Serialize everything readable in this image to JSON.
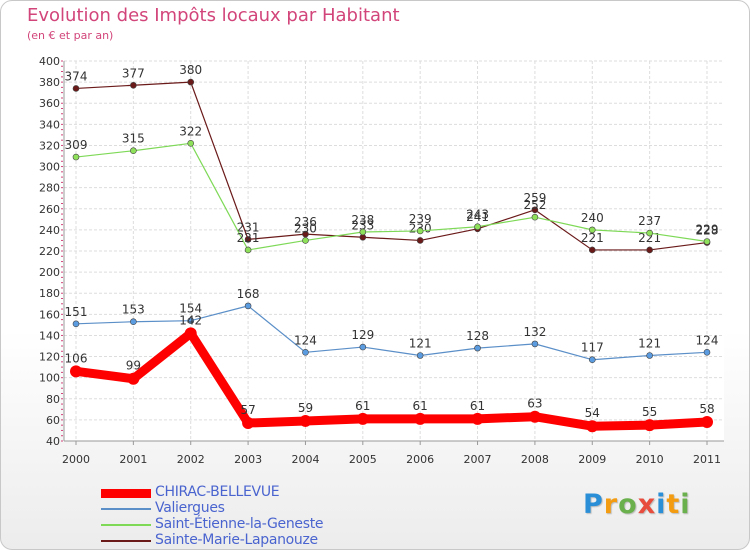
{
  "title": "Evolution des Impôts locaux par Habitant",
  "subtitle": "(en € et par an)",
  "logo": {
    "text": "Proxiti",
    "colors": [
      "#2a8fd6",
      "#f39c12",
      "#6ab04c",
      "#e74c3c",
      "#2a8fd6",
      "#f39c12",
      "#6ab04c"
    ]
  },
  "chart_data": {
    "type": "line",
    "title": "Evolution des Impôts locaux par Habitant",
    "subtitle": "(en € et par an)",
    "xlabel": "",
    "ylabel": "",
    "x": [
      "2000",
      "2001",
      "2002",
      "2003",
      "2004",
      "2005",
      "2006",
      "2007",
      "2008",
      "2009",
      "2010",
      "2011"
    ],
    "ylim": [
      40,
      400
    ],
    "yticks": [
      40,
      60,
      80,
      100,
      120,
      140,
      160,
      180,
      200,
      220,
      240,
      260,
      280,
      300,
      320,
      340,
      360,
      380,
      400
    ],
    "grid": true,
    "legend_position": "bottom-left",
    "series": [
      {
        "name": "CHIRAC-BELLEVUE",
        "color": "#ff0000",
        "emphasis": "thick",
        "values": [
          106,
          99,
          142,
          57,
          59,
          61,
          61,
          61,
          63,
          54,
          55,
          58
        ],
        "labels": [
          "106",
          "99",
          "142",
          "57",
          "59",
          "61",
          "61",
          "61",
          "63",
          "54",
          "55",
          "58"
        ]
      },
      {
        "name": "Valiergues",
        "color": "#5b8fc8",
        "emphasis": "thin",
        "values": [
          151,
          153,
          154,
          168,
          124,
          129,
          121,
          128,
          132,
          117,
          121,
          124
        ],
        "labels": [
          "151",
          "153",
          "154",
          "168",
          "124",
          "129",
          "121",
          "128",
          "132",
          "117",
          "121",
          "124"
        ]
      },
      {
        "name": "Saint-Étienne-la-Geneste",
        "color": "#7ed957",
        "emphasis": "thin",
        "values": [
          309,
          315,
          322,
          221,
          230,
          238,
          239,
          243,
          252,
          240,
          237,
          229
        ],
        "labels": [
          "309",
          "315",
          "322",
          "221",
          "230",
          "238",
          "239",
          "243",
          "252",
          "240",
          "237",
          "229"
        ]
      },
      {
        "name": "Sainte-Marie-Lapanouze",
        "color": "#6b1a1a",
        "emphasis": "thin",
        "values": [
          374,
          377,
          380,
          231,
          236,
          233,
          230,
          241,
          259,
          221,
          221,
          228
        ],
        "labels": [
          "374",
          "377",
          "380",
          "231",
          "236",
          "233",
          "230",
          "241",
          "259",
          "221",
          "221",
          "228"
        ]
      }
    ]
  }
}
